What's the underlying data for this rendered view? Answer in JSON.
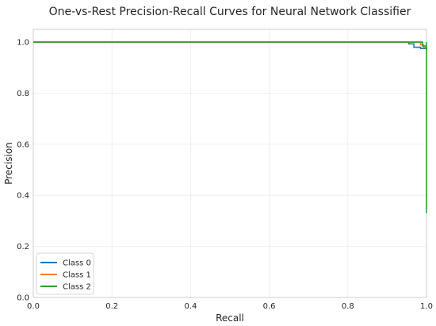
{
  "chart_data": {
    "type": "line",
    "title": "One-vs-Rest Precision-Recall Curves for Neural Network Classifier",
    "xlabel": "Recall",
    "ylabel": "Precision",
    "xlim": [
      0.0,
      1.0
    ],
    "ylim": [
      0.0,
      1.05
    ],
    "xticks": [
      0.0,
      0.2,
      0.4,
      0.6,
      0.8,
      1.0
    ],
    "xtick_labels": [
      "0.0",
      "0.2",
      "0.4",
      "0.6",
      "0.8",
      "1.0"
    ],
    "yticks": [
      0.0,
      0.2,
      0.4,
      0.6,
      0.8,
      1.0
    ],
    "ytick_labels": [
      "0.0",
      "0.2",
      "0.4",
      "0.6",
      "0.8",
      "1.0"
    ],
    "grid": true,
    "legend_position": "lower-left",
    "series": [
      {
        "name": "Class 0",
        "color": "#1f77b4",
        "x": [
          0.0,
          0.955,
          0.955,
          0.968,
          0.968,
          0.985,
          0.985,
          1.0,
          1.0
        ],
        "y": [
          1.0,
          1.0,
          0.993,
          0.993,
          0.98,
          0.98,
          0.975,
          0.975,
          0.97
        ]
      },
      {
        "name": "Class 1",
        "color": "#ff7f0e",
        "x": [
          0.0,
          0.985,
          0.985,
          0.992,
          0.992,
          1.0,
          1.0
        ],
        "y": [
          1.0,
          1.0,
          0.99,
          0.99,
          0.98,
          0.98,
          0.97
        ]
      },
      {
        "name": "Class 2",
        "color": "#2ca02c",
        "x": [
          0.0,
          0.99,
          0.99,
          1.0,
          1.0,
          1.0
        ],
        "y": [
          1.0,
          1.0,
          0.985,
          0.985,
          1.0,
          0.33
        ]
      }
    ]
  }
}
